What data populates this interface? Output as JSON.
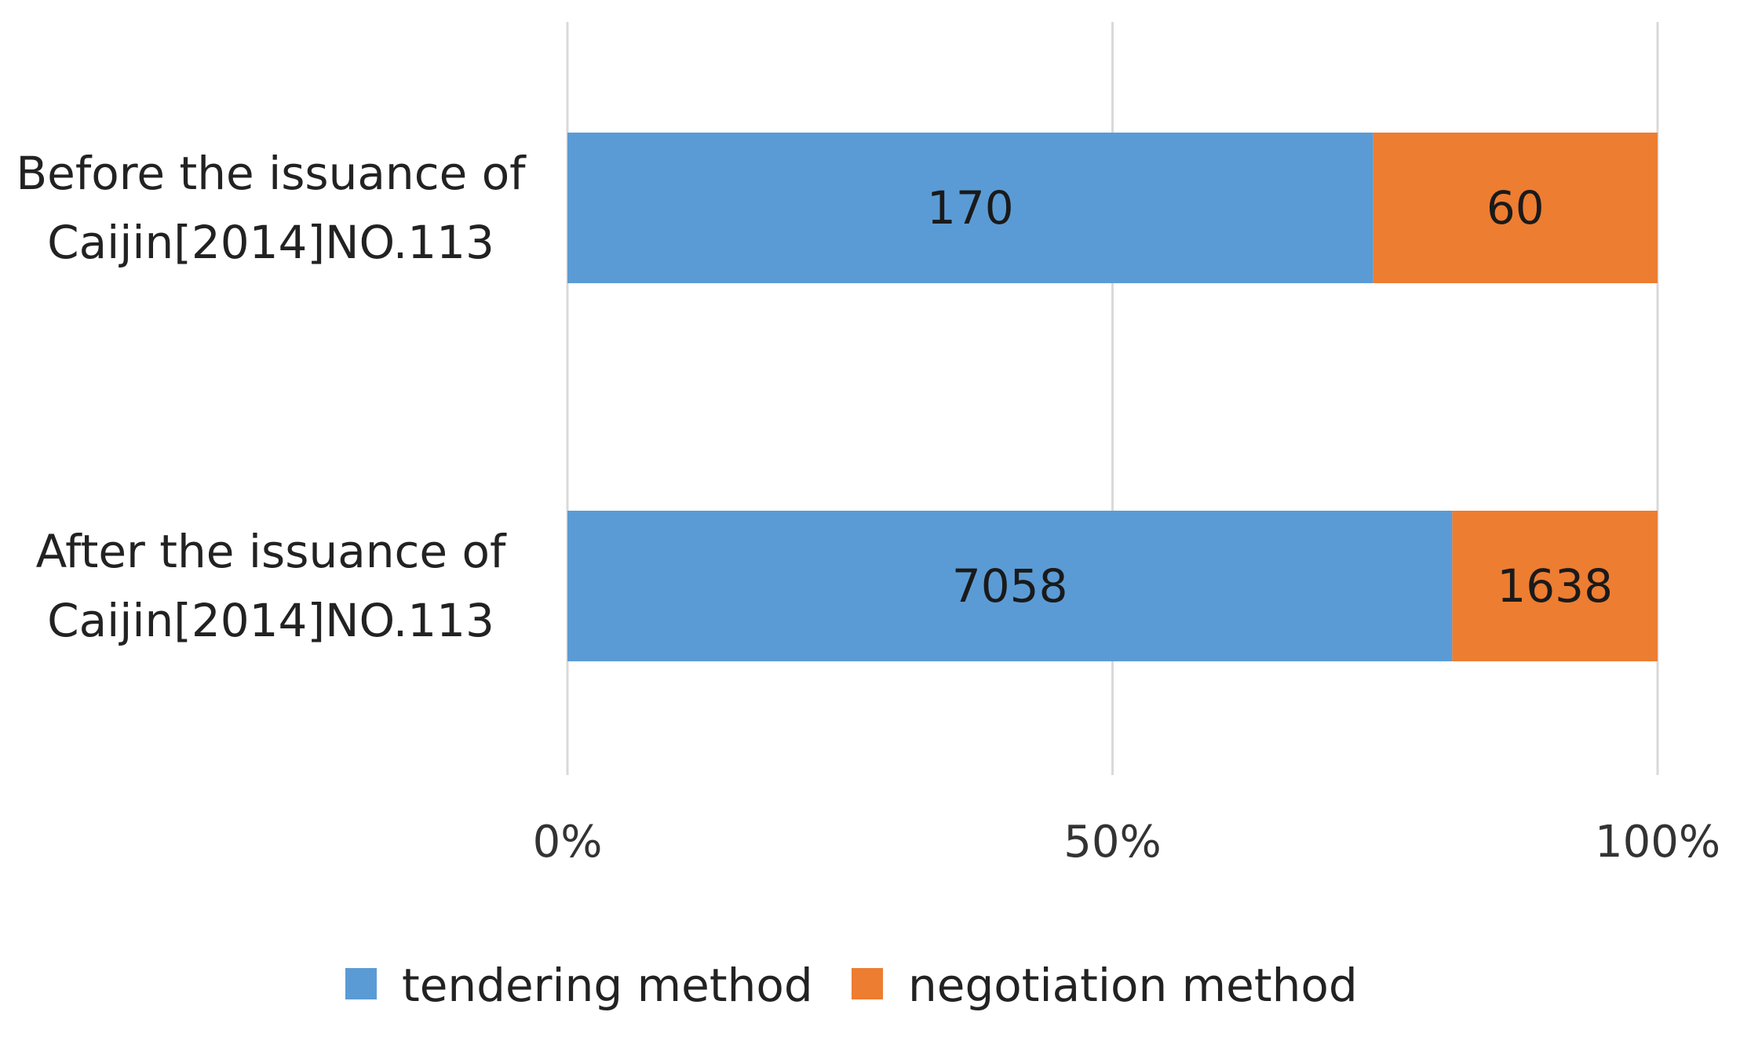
{
  "chart_data": {
    "type": "bar",
    "orientation": "horizontal",
    "stacking": "percent",
    "title": "",
    "xlabel": "",
    "ylabel": "",
    "categories": [
      [
        "Before the issuance of",
        "Caijin[2014]NO.113"
      ],
      [
        "After the issuance of",
        "Caijin[2014]NO.113"
      ]
    ],
    "series": [
      {
        "name": "tendering method",
        "values": [
          170,
          7058
        ],
        "color": "#5b9bd5"
      },
      {
        "name": "negotiation method",
        "values": [
          60,
          1638
        ],
        "color": "#ed7d31"
      }
    ],
    "xlim": [
      0,
      100
    ],
    "xticks": [
      0,
      50,
      100
    ],
    "xtick_labels": [
      "0%",
      "50%",
      "100%"
    ],
    "grid": "vertical",
    "legend": "bottom-center",
    "data_labels": true
  }
}
